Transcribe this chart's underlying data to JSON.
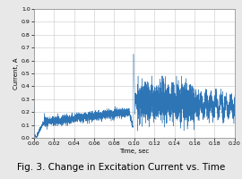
{
  "title": "Fig. 3. Change in Excitation Current vs. Time",
  "xlabel": "Time, sec",
  "ylabel": "Current, A",
  "xlim": [
    0.0,
    0.2
  ],
  "ylim": [
    0.0,
    1.0
  ],
  "xticks": [
    0.0,
    0.02,
    0.04,
    0.06,
    0.08,
    0.1,
    0.12,
    0.14,
    0.16,
    0.18,
    0.2
  ],
  "yticks": [
    0.0,
    0.1,
    0.2,
    0.3,
    0.4,
    0.5,
    0.6,
    0.7,
    0.8,
    0.9,
    1.0
  ],
  "line_color": "#2e75b6",
  "bg_color": "#e8e8e8",
  "plot_bg_color": "#ffffff",
  "grid_color": "#c8c8c8",
  "title_fontsize": 7.5,
  "axis_label_fontsize": 5.0,
  "tick_fontsize": 4.5,
  "seed": 42
}
